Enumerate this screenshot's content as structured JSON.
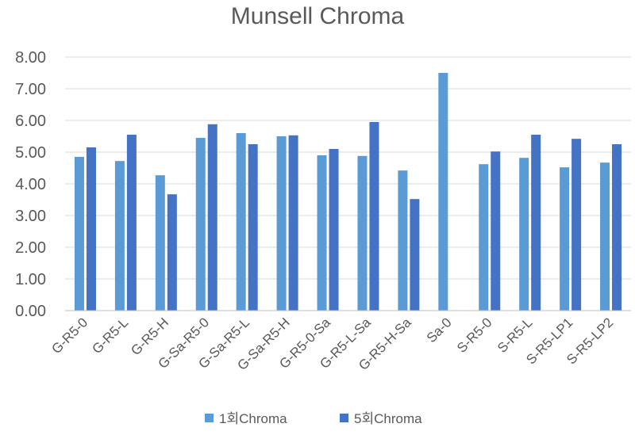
{
  "chart_data": {
    "type": "bar",
    "title": "Munsell Chroma",
    "xlabel": "",
    "ylabel": "",
    "ylim": [
      0,
      8
    ],
    "yticks": [
      "0.00",
      "1.00",
      "2.00",
      "3.00",
      "4.00",
      "5.00",
      "6.00",
      "7.00",
      "8.00"
    ],
    "categories": [
      "G-R5-0",
      "G-R5-L",
      "G-R5-H",
      "G-Sa-R5-0",
      "G-Sa-R5-L",
      "G-Sa-R5-H",
      "G-R5-0-Sa",
      "G-R5-L-Sa",
      "G-R5-H-Sa",
      "Sa-0",
      "S-R5-0",
      "S-R5-L",
      "S-R5-LP1",
      "S-R5-LP2"
    ],
    "series": [
      {
        "name": "1회Chroma",
        "color": "#5b9bd5",
        "values": [
          4.85,
          4.72,
          4.27,
          5.45,
          5.6,
          5.5,
          4.9,
          4.88,
          4.42,
          7.5,
          4.62,
          4.82,
          4.52,
          4.67
        ]
      },
      {
        "name": "5회Chroma",
        "color": "#4472c4",
        "values": [
          5.15,
          5.55,
          3.67,
          5.88,
          5.25,
          5.53,
          5.1,
          5.95,
          3.52,
          null,
          5.02,
          5.55,
          5.42,
          5.25
        ]
      }
    ],
    "grid": true,
    "legend_position": "bottom"
  }
}
